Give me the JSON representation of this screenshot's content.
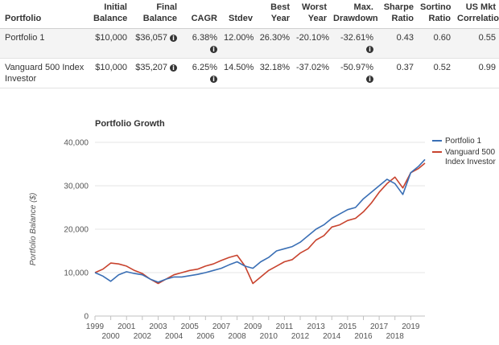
{
  "table": {
    "headers": [
      [
        "Portfolio"
      ],
      [
        "Initial",
        "Balance"
      ],
      [
        "Final",
        "Balance"
      ],
      [
        "CAGR"
      ],
      [
        "Stdev"
      ],
      [
        "Best",
        "Year"
      ],
      [
        "Worst",
        "Year"
      ],
      [
        "Max.",
        "Drawdown"
      ],
      [
        "Sharpe",
        "Ratio"
      ],
      [
        "Sortino",
        "Ratio"
      ],
      [
        "US Mkt",
        "Correlation"
      ]
    ],
    "rows": [
      {
        "name": "Portfolio 1",
        "initial": "$10,000",
        "final": "$36,057",
        "cagr": "6.38%",
        "stdev": "12.00%",
        "best": "26.30%",
        "worst": "-20.10%",
        "maxdd": "-32.61%",
        "sharpe": "0.43",
        "sortino": "0.60",
        "corr": "0.55"
      },
      {
        "name": "Vanguard 500 Index Investor",
        "initial": "$10,000",
        "final": "$35,207",
        "cagr": "6.25%",
        "stdev": "14.50%",
        "best": "32.18%",
        "worst": "-37.02%",
        "maxdd": "-50.97%",
        "sharpe": "0.37",
        "sortino": "0.52",
        "corr": "0.99"
      }
    ],
    "info_glyph": "i"
  },
  "chart_data": {
    "type": "line",
    "title": "Portfolio Growth",
    "xlabel": "",
    "ylabel": "Portfolio Balance ($)",
    "ylim": [
      0,
      40000
    ],
    "xlim": [
      1999,
      2019.9
    ],
    "yticks": [
      0,
      10000,
      20000,
      30000,
      40000
    ],
    "ytick_labels": [
      "0",
      "10,000",
      "20,000",
      "30,000",
      "40,000"
    ],
    "xticks": [
      1999,
      2000,
      2001,
      2002,
      2003,
      2004,
      2005,
      2006,
      2007,
      2008,
      2009,
      2010,
      2011,
      2012,
      2013,
      2014,
      2015,
      2016,
      2017,
      2018,
      2019
    ],
    "grid": true,
    "legend": "right",
    "series": [
      {
        "name": "Portfolio 1",
        "color": "#3a6fb5",
        "x": [
          1999.0,
          1999.5,
          2000.0,
          2000.5,
          2001.0,
          2001.5,
          2002.0,
          2002.5,
          2003.0,
          2003.5,
          2004.0,
          2004.5,
          2005.0,
          2005.5,
          2006.0,
          2006.5,
          2007.0,
          2007.5,
          2008.0,
          2008.5,
          2009.0,
          2009.5,
          2010.0,
          2010.5,
          2011.0,
          2011.5,
          2012.0,
          2012.5,
          2013.0,
          2013.5,
          2014.0,
          2014.5,
          2015.0,
          2015.5,
          2016.0,
          2016.5,
          2017.0,
          2017.5,
          2018.0,
          2018.5,
          2019.0,
          2019.5,
          2019.9
        ],
        "values": [
          10000,
          9200,
          8000,
          9500,
          10200,
          9800,
          9500,
          8500,
          7800,
          8500,
          9000,
          9000,
          9300,
          9600,
          10000,
          10500,
          11000,
          11800,
          12500,
          11500,
          11000,
          12500,
          13500,
          15000,
          15500,
          16000,
          17000,
          18500,
          20000,
          21000,
          22500,
          23500,
          24500,
          25000,
          27000,
          28500,
          30000,
          31500,
          30500,
          28000,
          33000,
          34500,
          36057
        ]
      },
      {
        "name": "Vanguard 500 Index Investor",
        "color": "#c8432e",
        "x": [
          1999.0,
          1999.5,
          2000.0,
          2000.5,
          2001.0,
          2001.5,
          2002.0,
          2002.5,
          2003.0,
          2003.5,
          2004.0,
          2004.5,
          2005.0,
          2005.5,
          2006.0,
          2006.5,
          2007.0,
          2007.5,
          2008.0,
          2008.5,
          2009.0,
          2009.5,
          2010.0,
          2010.5,
          2011.0,
          2011.5,
          2012.0,
          2012.5,
          2013.0,
          2013.5,
          2014.0,
          2014.5,
          2015.0,
          2015.5,
          2016.0,
          2016.5,
          2017.0,
          2017.5,
          2018.0,
          2018.5,
          2019.0,
          2019.5,
          2019.9
        ],
        "values": [
          10000,
          10800,
          12200,
          12000,
          11500,
          10500,
          9800,
          8500,
          7500,
          8500,
          9500,
          10000,
          10500,
          10800,
          11500,
          12000,
          12800,
          13500,
          14000,
          11500,
          7500,
          9000,
          10500,
          11500,
          12500,
          13000,
          14500,
          15500,
          17500,
          18500,
          20500,
          21000,
          22000,
          22500,
          24000,
          26000,
          28500,
          30500,
          32000,
          29500,
          33000,
          34000,
          35207
        ]
      }
    ]
  }
}
